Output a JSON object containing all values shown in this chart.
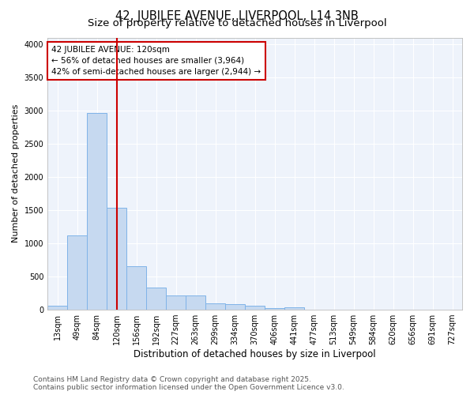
{
  "title": "42, JUBILEE AVENUE, LIVERPOOL, L14 3NB",
  "subtitle": "Size of property relative to detached houses in Liverpool",
  "xlabel": "Distribution of detached houses by size in Liverpool",
  "ylabel": "Number of detached properties",
  "categories": [
    "13sqm",
    "49sqm",
    "84sqm",
    "120sqm",
    "156sqm",
    "192sqm",
    "227sqm",
    "263sqm",
    "299sqm",
    "334sqm",
    "370sqm",
    "406sqm",
    "441sqm",
    "477sqm",
    "513sqm",
    "549sqm",
    "584sqm",
    "620sqm",
    "656sqm",
    "691sqm",
    "727sqm"
  ],
  "values": [
    55,
    1120,
    2960,
    1530,
    660,
    330,
    210,
    210,
    100,
    85,
    55,
    30,
    35,
    5,
    3,
    2,
    1,
    1,
    0,
    0,
    0
  ],
  "bar_color": "#c6d9f0",
  "bar_edge_color": "#7fb3e8",
  "vline_x_index": 3,
  "vline_color": "#cc0000",
  "annotation_text": "42 JUBILEE AVENUE: 120sqm\n← 56% of detached houses are smaller (3,964)\n42% of semi-detached houses are larger (2,944) →",
  "annotation_box_facecolor": "#ffffff",
  "annotation_box_edgecolor": "#cc0000",
  "ylim": [
    0,
    4100
  ],
  "yticks": [
    0,
    500,
    1000,
    1500,
    2000,
    2500,
    3000,
    3500,
    4000
  ],
  "background_color": "#ffffff",
  "plot_bg_color": "#eef3fb",
  "grid_color": "#ffffff",
  "footer_line1": "Contains HM Land Registry data © Crown copyright and database right 2025.",
  "footer_line2": "Contains public sector information licensed under the Open Government Licence v3.0.",
  "title_fontsize": 10.5,
  "subtitle_fontsize": 9.5,
  "xlabel_fontsize": 8.5,
  "ylabel_fontsize": 8,
  "tick_fontsize": 7,
  "annotation_fontsize": 7.5,
  "footer_fontsize": 6.5
}
